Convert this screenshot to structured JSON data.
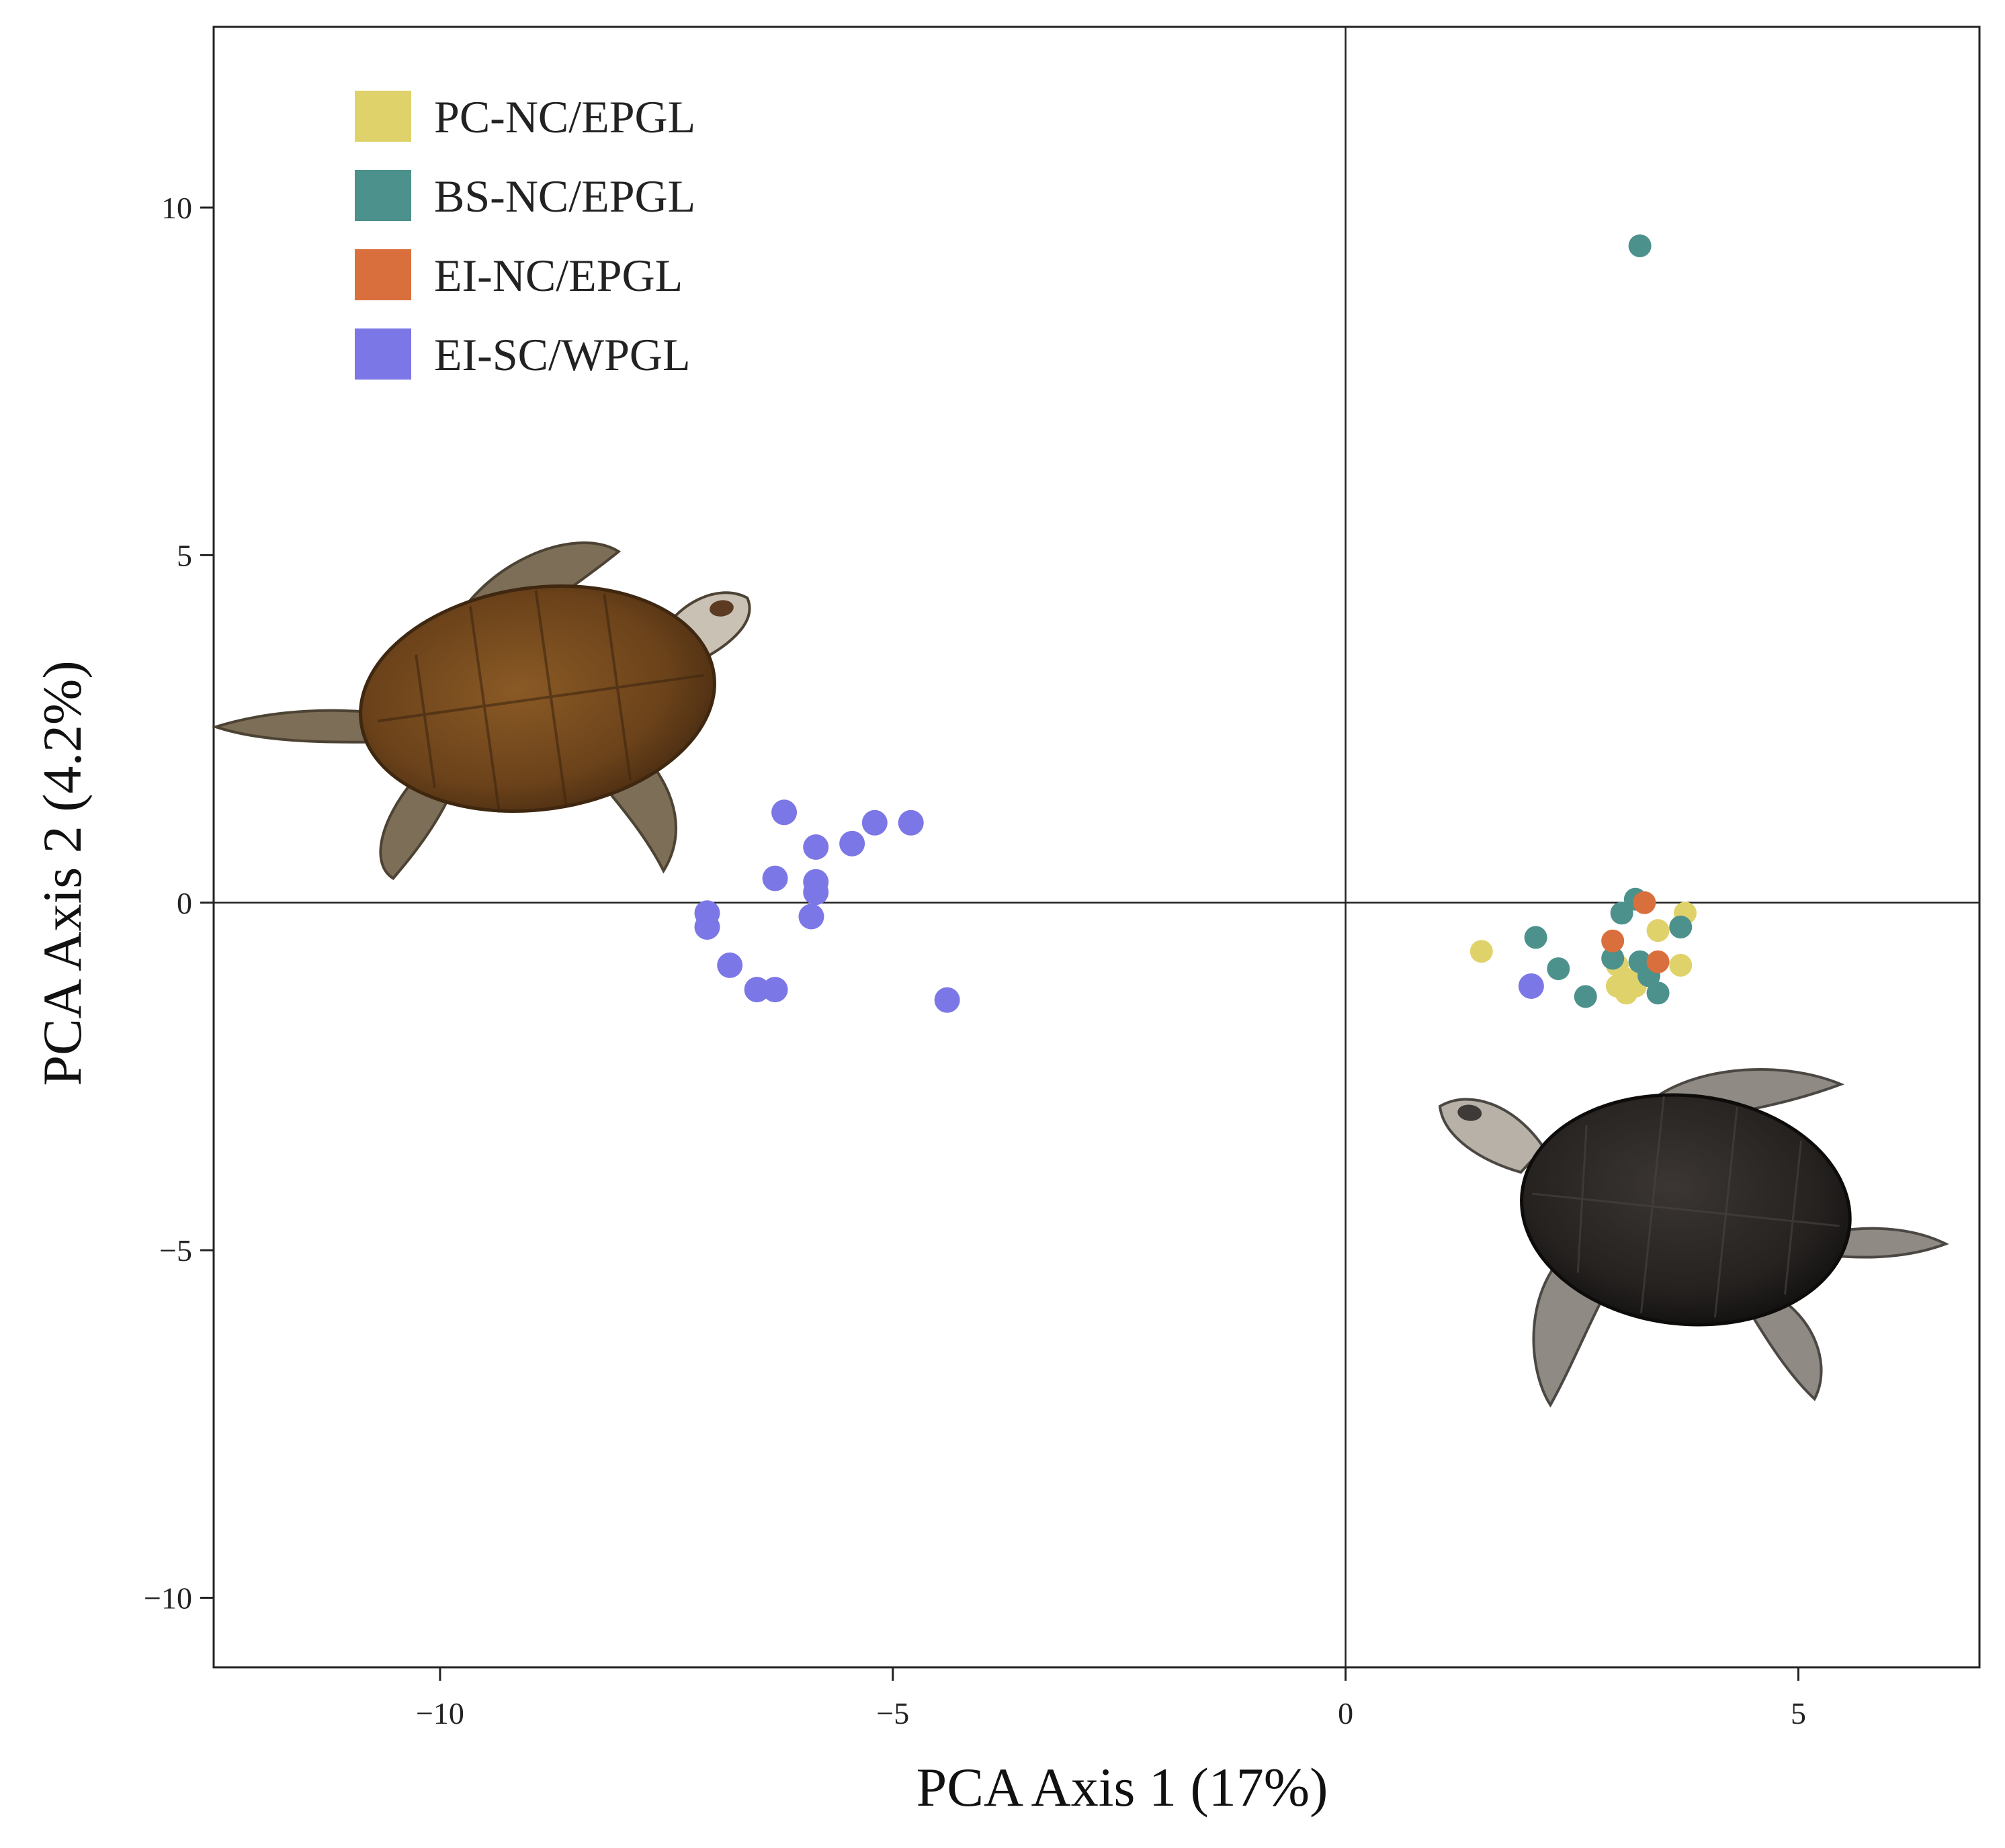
{
  "chart_data": {
    "type": "scatter",
    "xlabel": "PCA Axis 1 (17%)",
    "ylabel": "PCA Axis 2 (4.2%)",
    "xlim": [
      -12.5,
      7
    ],
    "ylim": [
      -11,
      12.6
    ],
    "x_ticks": [
      -10,
      -5,
      0,
      5
    ],
    "y_ticks": [
      -10,
      -5,
      0,
      5,
      10
    ],
    "x_tick_labels": [
      "−10",
      "−5",
      "0",
      "5"
    ],
    "y_tick_labels": [
      "−10",
      "−5",
      "0",
      "5",
      "10"
    ],
    "grid": false,
    "reference_lines": {
      "x": 0,
      "y": 0
    },
    "legend_position": "top-left",
    "series": [
      {
        "name": "PC-NC/EPGL",
        "color": "#E0D26A",
        "points": [
          [
            1.5,
            -0.7
          ],
          [
            3.0,
            -1.2
          ],
          [
            3.1,
            -1.3
          ],
          [
            3.2,
            -1.2
          ],
          [
            3.0,
            -0.9
          ],
          [
            3.3,
            -1.0
          ],
          [
            3.45,
            -0.4
          ],
          [
            3.7,
            -0.9
          ],
          [
            3.75,
            -0.15
          ],
          [
            3.1,
            -1.1
          ]
        ]
      },
      {
        "name": "BS-NC/EPGL",
        "color": "#4C918C",
        "points": [
          [
            3.25,
            9.45
          ],
          [
            2.1,
            -0.5
          ],
          [
            2.35,
            -0.95
          ],
          [
            2.65,
            -1.35
          ],
          [
            2.95,
            -0.8
          ],
          [
            3.05,
            -0.15
          ],
          [
            3.2,
            0.05
          ],
          [
            3.25,
            -0.85
          ],
          [
            3.35,
            -1.05
          ],
          [
            3.45,
            -1.3
          ],
          [
            3.7,
            -0.35
          ]
        ]
      },
      {
        "name": "EI-NC/EPGL",
        "color": "#DA6F3E",
        "points": [
          [
            2.95,
            -0.55
          ],
          [
            3.3,
            0.0
          ],
          [
            3.45,
            -0.85
          ]
        ]
      },
      {
        "name": "EI-SC/WPGL",
        "color": "#7B77E6",
        "points": [
          [
            -6.2,
            1.3
          ],
          [
            -5.2,
            1.15
          ],
          [
            -4.8,
            1.15
          ],
          [
            -5.45,
            0.85
          ],
          [
            -5.85,
            0.8
          ],
          [
            -6.3,
            0.35
          ],
          [
            -5.85,
            0.3
          ],
          [
            -5.85,
            0.15
          ],
          [
            -5.9,
            -0.2
          ],
          [
            -7.05,
            -0.15
          ],
          [
            -7.05,
            -0.35
          ],
          [
            -6.8,
            -0.9
          ],
          [
            -6.5,
            -1.25
          ],
          [
            -6.3,
            -1.25
          ],
          [
            -4.4,
            -1.4
          ],
          [
            2.05,
            -1.2
          ]
        ]
      }
    ]
  }
}
